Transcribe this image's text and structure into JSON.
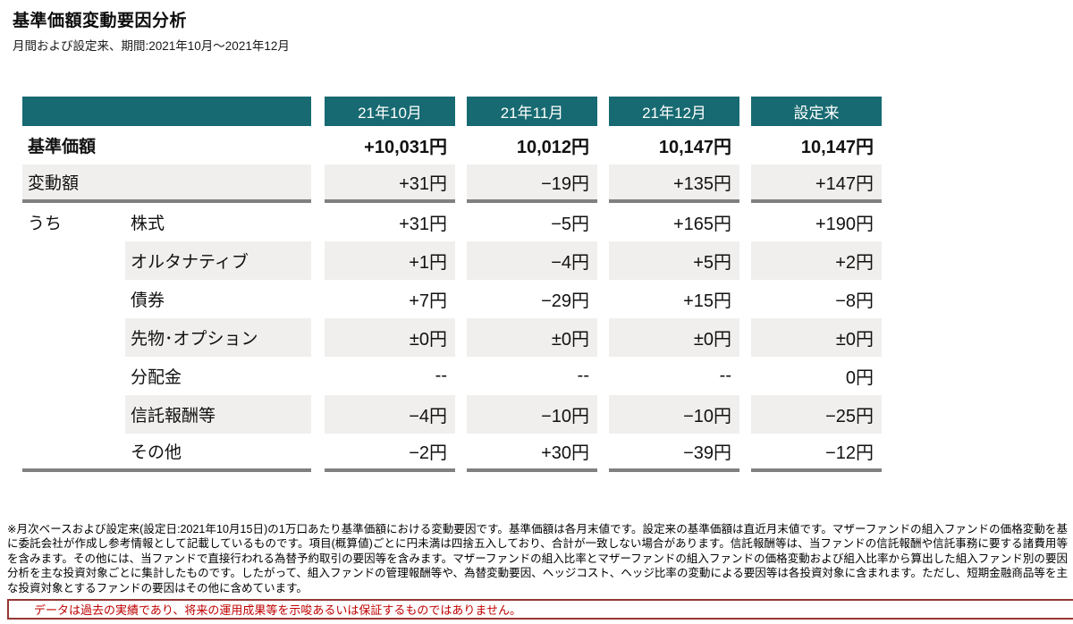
{
  "page": {
    "title": "基準価額変動要因分析",
    "subtitle": "月間および設定来、期間:2021年10月～2021年12月"
  },
  "table": {
    "columns": [
      "21年10月",
      "21年11月",
      "21年12月",
      "設定来"
    ],
    "group_label": "うち",
    "rows": [
      {
        "label": "基準価額",
        "span": true,
        "bold": true,
        "shade": false,
        "border": false,
        "values": [
          "+10,031円",
          "10,012円",
          "10,147円",
          "10,147円"
        ]
      },
      {
        "label": "変動額",
        "span": true,
        "bold": false,
        "shade": true,
        "border": true,
        "values": [
          "+31円",
          "−19円",
          "+135円",
          "+147円"
        ]
      },
      {
        "label": "株式",
        "group": "うち",
        "span": false,
        "bold": false,
        "shade": false,
        "border": false,
        "values": [
          "+31円",
          "−5円",
          "+165円",
          "+190円"
        ]
      },
      {
        "label": "オルタナティブ",
        "span": false,
        "bold": false,
        "shade": true,
        "border": false,
        "values": [
          "+1円",
          "−4円",
          "+5円",
          "+2円"
        ]
      },
      {
        "label": "債券",
        "span": false,
        "bold": false,
        "shade": false,
        "border": false,
        "values": [
          "+7円",
          "−29円",
          "+15円",
          "−8円"
        ]
      },
      {
        "label": "先物･オプション",
        "span": false,
        "bold": false,
        "shade": true,
        "border": false,
        "values": [
          "±0円",
          "±0円",
          "±0円",
          "±0円"
        ]
      },
      {
        "label": "分配金",
        "span": false,
        "bold": false,
        "shade": false,
        "border": false,
        "values": [
          "--",
          "--",
          "--",
          "0円"
        ]
      },
      {
        "label": "信託報酬等",
        "span": false,
        "bold": false,
        "shade": true,
        "border": false,
        "values": [
          "−4円",
          "−10円",
          "−10円",
          "−25円"
        ]
      },
      {
        "label": "その他",
        "span": false,
        "bold": false,
        "shade": false,
        "border": true,
        "values": [
          "−2円",
          "+30円",
          "−39円",
          "−12円"
        ]
      }
    ]
  },
  "footnote": "※月次ベースおよび設定来(設定日:2021年10月15日)の1万口あたり基準価額における変動要因です。基準価額は各月末値です。設定来の基準価額は直近月末値です。マザーファンドの組入ファンドの価格変動を基に委託会社が作成し参考情報として記載しているものです。項目(概算値)ごとに円未満は四捨五入しており、合計が一致しない場合があります。信託報酬等は、当ファンドの信託報酬や信託事務に要する諸費用等を含みます。その他には、当ファンドで直接行われる為替予約取引の要因等を含みます。マザーファンドの組入比率とマザーファンドの組入ファンドの価格変動および組入比率から算出した組入ファンド別の要因分析を主な投資対象ごとに集計したものです。したがって、組入ファンドの管理報酬等や、為替変動要因、ヘッジコスト、ヘッジ比率の変動による要因等は各投資対象に含まれます。ただし、短期金融商品等を主な投資対象とするファンドの要因はその他に含めています。",
  "disclaimer": "データは過去の実績であり、将来の運用成果等を示唆あるいは保証するものではありません。",
  "colors": {
    "accent_teal": "#176a71",
    "row_gray": "#f0efed",
    "border_gray": "#808080",
    "disclaimer_red": "#c00000",
    "disclaimer_border": "#953735"
  }
}
